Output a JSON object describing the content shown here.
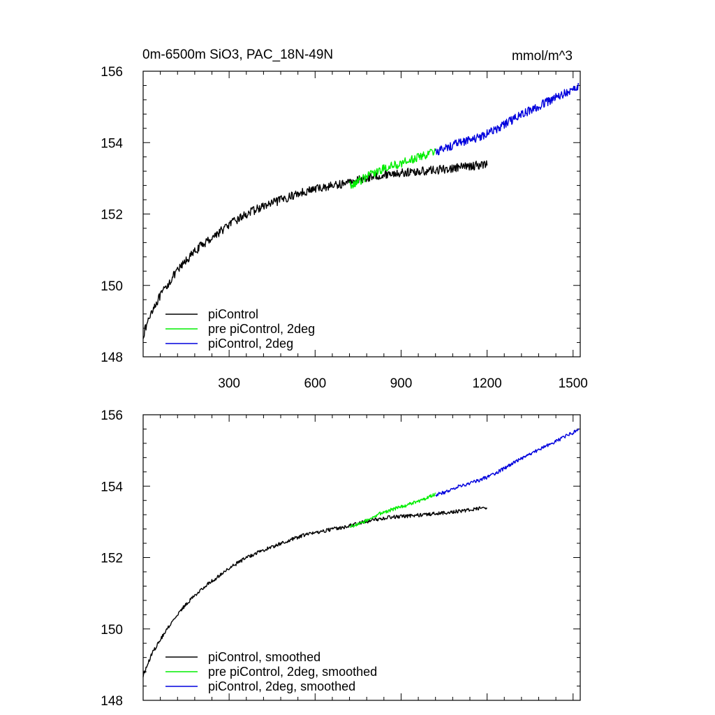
{
  "figure": {
    "title_left": "0m-6500m SiO3, PAC_18N-49N",
    "title_right": "mmol/m^3"
  },
  "chart_data": [
    {
      "type": "line",
      "title": "0m-6500m SiO3, PAC_18N-49N",
      "units": "mmol/m^3",
      "xlim": [
        0,
        1525
      ],
      "ylim": [
        148,
        156
      ],
      "xticks": [
        300,
        600,
        900,
        1200,
        1500
      ],
      "xtick_labels": [
        "300",
        "600",
        "900",
        "1200",
        "1500"
      ],
      "yticks": [
        148,
        150,
        152,
        154,
        156
      ],
      "ytick_labels": [
        "148",
        "150",
        "152",
        "154",
        "156"
      ],
      "legend_position": "bottom-left",
      "noise": 0.12,
      "series": [
        {
          "name": "piControl",
          "color": "#000000",
          "x": [
            0,
            30,
            60,
            100,
            150,
            200,
            250,
            300,
            350,
            400,
            450,
            500,
            550,
            600,
            650,
            700,
            750,
            800,
            850,
            900,
            950,
            1000,
            1050,
            1100,
            1150,
            1200
          ],
          "y": [
            148.6,
            149.3,
            149.7,
            150.2,
            150.7,
            151.1,
            151.4,
            151.7,
            151.95,
            152.15,
            152.3,
            152.45,
            152.6,
            152.7,
            152.78,
            152.85,
            152.95,
            153.05,
            153.12,
            153.15,
            153.18,
            153.22,
            153.25,
            153.3,
            153.35,
            153.4
          ]
        },
        {
          "name": "pre piControl, 2deg",
          "color": "#00ee00",
          "x": [
            720,
            760,
            800,
            850,
            900,
            950,
            1000,
            1020
          ],
          "y": [
            152.8,
            152.95,
            153.15,
            153.3,
            153.42,
            153.55,
            153.7,
            153.78
          ]
        },
        {
          "name": "piControl, 2deg",
          "color": "#0000dd",
          "x": [
            1020,
            1060,
            1100,
            1150,
            1200,
            1250,
            1300,
            1350,
            1400,
            1450,
            1500,
            1520
          ],
          "y": [
            153.75,
            153.85,
            154.0,
            154.1,
            154.25,
            154.45,
            154.7,
            154.9,
            155.1,
            155.3,
            155.5,
            155.6
          ]
        }
      ]
    },
    {
      "type": "line",
      "xlim": [
        0,
        1525
      ],
      "ylim": [
        148,
        156
      ],
      "xticks": [
        300,
        600,
        900,
        1200,
        1500
      ],
      "yticks": [
        148,
        150,
        152,
        154,
        156
      ],
      "ytick_labels": [
        "148",
        "150",
        "152",
        "154",
        "156"
      ],
      "legend_position": "bottom-left",
      "noise": 0.05,
      "series": [
        {
          "name": "piControl, smoothed",
          "color": "#000000",
          "x": [
            0,
            30,
            60,
            100,
            150,
            200,
            250,
            300,
            350,
            400,
            450,
            500,
            550,
            600,
            650,
            700,
            750,
            800,
            850,
            900,
            950,
            1000,
            1050,
            1100,
            1150,
            1200
          ],
          "y": [
            148.7,
            149.3,
            149.7,
            150.2,
            150.7,
            151.1,
            151.4,
            151.7,
            151.95,
            152.15,
            152.3,
            152.45,
            152.6,
            152.7,
            152.78,
            152.85,
            152.95,
            153.05,
            153.12,
            153.15,
            153.18,
            153.22,
            153.25,
            153.3,
            153.35,
            153.4
          ]
        },
        {
          "name": "pre piControl, 2deg, smoothed",
          "color": "#00ee00",
          "x": [
            720,
            760,
            800,
            850,
            900,
            950,
            1000,
            1020
          ],
          "y": [
            152.85,
            152.95,
            153.15,
            153.3,
            153.42,
            153.55,
            153.7,
            153.78
          ]
        },
        {
          "name": "piControl, 2deg, smoothed",
          "color": "#0000dd",
          "x": [
            1020,
            1060,
            1100,
            1150,
            1200,
            1250,
            1300,
            1350,
            1400,
            1450,
            1500,
            1520
          ],
          "y": [
            153.75,
            153.85,
            154.0,
            154.1,
            154.25,
            154.45,
            154.7,
            154.9,
            155.1,
            155.3,
            155.5,
            155.6
          ]
        }
      ]
    }
  ]
}
